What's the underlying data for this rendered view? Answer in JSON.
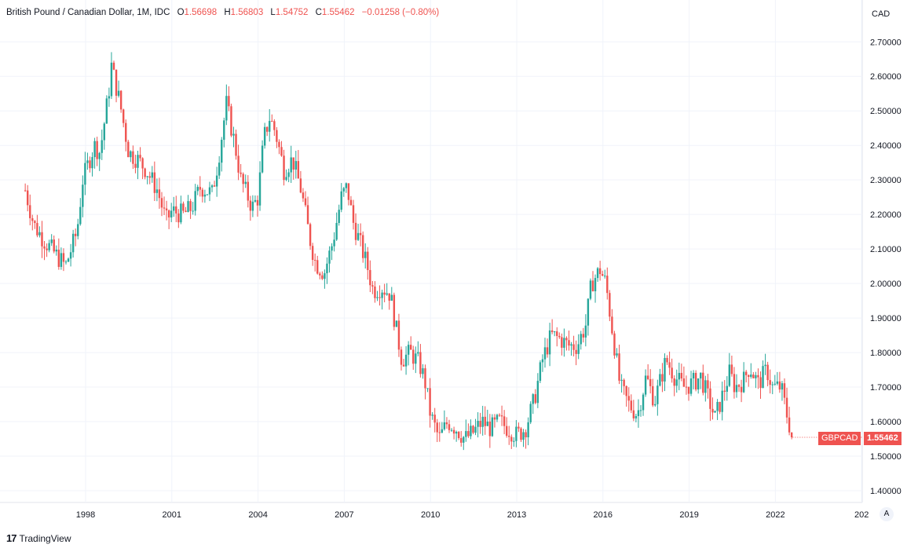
{
  "legend": {
    "symbol": "British Pound / Canadian Dollar, 1M, IDC",
    "o_label": "O",
    "o_value": "1.56698",
    "h_label": "H",
    "h_value": "1.56803",
    "l_label": "L",
    "l_value": "1.54752",
    "c_label": "C",
    "c_value": "1.55462",
    "change": "−0.01258 (−0.80%)"
  },
  "currency": "CAD",
  "ticker_label": "GBPCAD",
  "last_price": "1.55462",
  "auto_button": "A",
  "footer_brand": "TradingView",
  "colors": {
    "up": "#26a69a",
    "down": "#ef5350",
    "grid": "#f0f3fa",
    "tag": "#ef5350"
  },
  "chart_data": {
    "type": "candlestick",
    "title": "British Pound / Canadian Dollar, 1M, IDC",
    "y_ticks": [
      "1.40000",
      "1.50000",
      "1.60000",
      "1.70000",
      "1.80000",
      "1.90000",
      "2.00000",
      "2.10000",
      "2.20000",
      "2.30000",
      "2.40000",
      "2.50000",
      "2.60000",
      "2.70000"
    ],
    "x_ticks": [
      "1998",
      "2001",
      "2004",
      "2007",
      "2010",
      "2013",
      "2016",
      "2019",
      "2022",
      "202"
    ],
    "ylim": [
      1.37,
      2.78
    ],
    "xlim": [
      1995.9,
      2025.6
    ],
    "grid": true,
    "close_series": [
      [
        1995.9,
        2.27
      ],
      [
        1996.2,
        2.17
      ],
      [
        1996.6,
        2.12
      ],
      [
        1997.0,
        2.08
      ],
      [
        1997.3,
        2.05
      ],
      [
        1997.7,
        2.15
      ],
      [
        1997.9,
        2.3
      ],
      [
        1998.3,
        2.4
      ],
      [
        1998.5,
        2.38
      ],
      [
        1998.8,
        2.55
      ],
      [
        1998.9,
        2.63
      ],
      [
        1999.2,
        2.52
      ],
      [
        1999.5,
        2.38
      ],
      [
        1999.8,
        2.36
      ],
      [
        2000.1,
        2.33
      ],
      [
        2000.5,
        2.27
      ],
      [
        2000.8,
        2.18
      ],
      [
        2001.0,
        2.21
      ],
      [
        2001.4,
        2.2
      ],
      [
        2001.7,
        2.22
      ],
      [
        2002.0,
        2.28
      ],
      [
        2002.4,
        2.26
      ],
      [
        2002.6,
        2.35
      ],
      [
        2002.9,
        2.52
      ],
      [
        2003.2,
        2.4
      ],
      [
        2003.4,
        2.3
      ],
      [
        2003.8,
        2.22
      ],
      [
        2004.0,
        2.25
      ],
      [
        2004.2,
        2.42
      ],
      [
        2004.4,
        2.48
      ],
      [
        2004.6,
        2.44
      ],
      [
        2004.9,
        2.33
      ],
      [
        2005.2,
        2.36
      ],
      [
        2005.5,
        2.27
      ],
      [
        2005.8,
        2.13
      ],
      [
        2006.0,
        2.06
      ],
      [
        2006.3,
        2.03
      ],
      [
        2006.6,
        2.12
      ],
      [
        2006.9,
        2.25
      ],
      [
        2007.1,
        2.28
      ],
      [
        2007.3,
        2.18
      ],
      [
        2007.5,
        2.13
      ],
      [
        2007.8,
        2.05
      ],
      [
        2008.0,
        1.98
      ],
      [
        2008.3,
        1.99
      ],
      [
        2008.6,
        1.97
      ],
      [
        2008.8,
        1.87
      ],
      [
        2009.0,
        1.78
      ],
      [
        2009.3,
        1.8
      ],
      [
        2009.6,
        1.77
      ],
      [
        2009.8,
        1.72
      ],
      [
        2010.0,
        1.62
      ],
      [
        2010.3,
        1.55
      ],
      [
        2010.6,
        1.6
      ],
      [
        2010.9,
        1.58
      ],
      [
        2011.2,
        1.55
      ],
      [
        2011.5,
        1.57
      ],
      [
        2011.8,
        1.6
      ],
      [
        2012.1,
        1.58
      ],
      [
        2012.4,
        1.6
      ],
      [
        2012.7,
        1.58
      ],
      [
        2013.0,
        1.56
      ],
      [
        2013.3,
        1.58
      ],
      [
        2013.6,
        1.66
      ],
      [
        2013.9,
        1.78
      ],
      [
        2014.2,
        1.85
      ],
      [
        2014.5,
        1.84
      ],
      [
        2014.8,
        1.82
      ],
      [
        2015.1,
        1.82
      ],
      [
        2015.4,
        1.88
      ],
      [
        2015.6,
        2.0
      ],
      [
        2015.9,
        2.04
      ],
      [
        2016.1,
        2.0
      ],
      [
        2016.3,
        1.88
      ],
      [
        2016.6,
        1.7
      ],
      [
        2016.9,
        1.65
      ],
      [
        2017.2,
        1.62
      ],
      [
        2017.5,
        1.73
      ],
      [
        2017.8,
        1.66
      ],
      [
        2018.0,
        1.72
      ],
      [
        2018.2,
        1.78
      ],
      [
        2018.5,
        1.73
      ],
      [
        2018.8,
        1.7
      ],
      [
        2019.1,
        1.71
      ],
      [
        2019.4,
        1.73
      ],
      [
        2019.7,
        1.66
      ],
      [
        2019.9,
        1.61
      ],
      [
        2020.1,
        1.66
      ],
      [
        2020.4,
        1.74
      ],
      [
        2020.6,
        1.7
      ],
      [
        2020.9,
        1.72
      ],
      [
        2021.1,
        1.76
      ],
      [
        2021.4,
        1.71
      ],
      [
        2021.7,
        1.75
      ],
      [
        2021.9,
        1.7
      ],
      [
        2022.2,
        1.7
      ],
      [
        2022.4,
        1.62
      ],
      [
        2022.6,
        1.55
      ]
    ],
    "last_price": 1.55462
  }
}
